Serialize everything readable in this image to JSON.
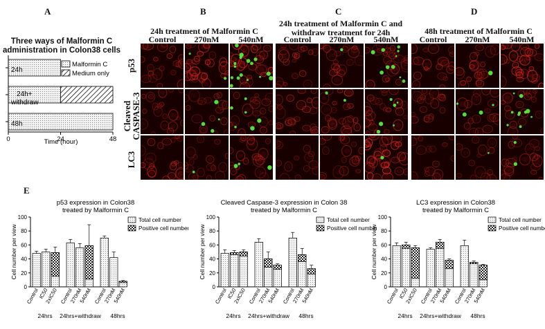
{
  "panels": {
    "A": "A",
    "B": "B",
    "C": "C",
    "D": "D",
    "E": "E"
  },
  "panelA": {
    "title_line1": "Three ways of Malformin C",
    "title_line2": "administration in Colon38 cells",
    "legend": [
      "Malformin C",
      "Medium only"
    ],
    "xlabel": "Time (hour)",
    "xticks": [
      "0",
      "24",
      "48"
    ],
    "bars": [
      {
        "label": "24h",
        "treat_end": 24,
        "medium_end": 24
      },
      {
        "label_line1": "24h+",
        "label_line2": "withdraw",
        "treat_end": 24,
        "medium_end": 48
      },
      {
        "label": "48h",
        "treat_end": 48,
        "medium_end": 48
      }
    ]
  },
  "panelB": {
    "title": "24h treatment of Malformin C",
    "cols": [
      "Control",
      "270nM",
      "540nM"
    ]
  },
  "panelC": {
    "title_line1": "24h treatment of Malformin C and",
    "title_line2": "withdraw treatment for 24h",
    "cols": [
      "Control",
      "270nM",
      "540nM"
    ]
  },
  "panelD": {
    "title": "48h treatment of Malformin C",
    "cols": [
      "Control",
      "270nM",
      "540nM"
    ]
  },
  "row_labels": [
    "p53",
    "Cleaved CASPASE-3",
    "LC3"
  ],
  "chart_data": [
    {
      "type": "bar",
      "title": "p53 expression in Colon38 treated by Malformin C",
      "title_line1": "p53 expression in Colon38",
      "title_line2": "treated by Malformin C",
      "ylabel": "Cell number per view",
      "ylim": [
        0,
        100
      ],
      "yticks": [
        "0",
        "20",
        "40",
        "60",
        "80",
        "100"
      ],
      "categories": [
        "Control",
        "IC50",
        "2xIC50",
        "Control",
        "270nM",
        "540nM",
        "Control",
        "270nM",
        "540nM"
      ],
      "groups": [
        "24hrs",
        "24hrs+withdraw",
        "48hrs"
      ],
      "series": [
        {
          "name": "Total cell number",
          "values": [
            48,
            50,
            49,
            63,
            56,
            59,
            70,
            42,
            8
          ],
          "errors": [
            3,
            4,
            8,
            5,
            6,
            30,
            3,
            8,
            1
          ]
        },
        {
          "name": "Positive cell number",
          "values": [
            0,
            0,
            15,
            0,
            0,
            11,
            0,
            0,
            6
          ]
        }
      ]
    },
    {
      "type": "bar",
      "title": "Cleaved Caspase-3 expression in Colon 38 treated by Malformin C",
      "title_line1": "Cleaved Caspase-3 expression in Colon 38",
      "title_line2": "treated by Malformin C",
      "ylabel": "Cell number per view",
      "ylim": [
        0,
        100
      ],
      "yticks": [
        "0",
        "20",
        "40",
        "60",
        "80",
        "100"
      ],
      "categories": [
        "Control",
        "IC50",
        "2xIC50",
        "Control",
        "270nM",
        "540nM",
        "Control",
        "270nM",
        "540nM"
      ],
      "groups": [
        "24hrs",
        "24hrs+withdraw",
        "48hrs"
      ],
      "series": [
        {
          "name": "Total cell number",
          "values": [
            48,
            49,
            50,
            64,
            40,
            31,
            70,
            46,
            26
          ],
          "errors": [
            5,
            3,
            3,
            5,
            10,
            2,
            8,
            9,
            5
          ]
        },
        {
          "name": "Positive cell number",
          "values": [
            0,
            46,
            44,
            0,
            28,
            25,
            0,
            36,
            18
          ]
        }
      ]
    },
    {
      "type": "bar",
      "title": "LC3 expression in Colon38 treated by Malformin C",
      "title_line1": "LC3 expression in Colon38",
      "title_line2": "treated by Malformin C",
      "ylabel": "Cell number per view",
      "ylim": [
        0,
        100
      ],
      "yticks": [
        "0",
        "20",
        "40",
        "60",
        "80",
        "100"
      ],
      "categories": [
        "Control",
        "IC50",
        "2xIC50",
        "Control",
        "270nM",
        "540nM",
        "Control",
        "270nM",
        "540nM"
      ],
      "groups": [
        "24hrs",
        "24hrs+withdraw",
        "48hrs"
      ],
      "series": [
        {
          "name": "Total cell number",
          "values": [
            59,
            60,
            56,
            54,
            64,
            38,
            59,
            35,
            31
          ],
          "errors": [
            4,
            4,
            3,
            2,
            4,
            2,
            8,
            2,
            1
          ]
        },
        {
          "name": "Positive cell number",
          "values": [
            0,
            55,
            12,
            0,
            55,
            26,
            0,
            33,
            10
          ]
        }
      ]
    }
  ]
}
